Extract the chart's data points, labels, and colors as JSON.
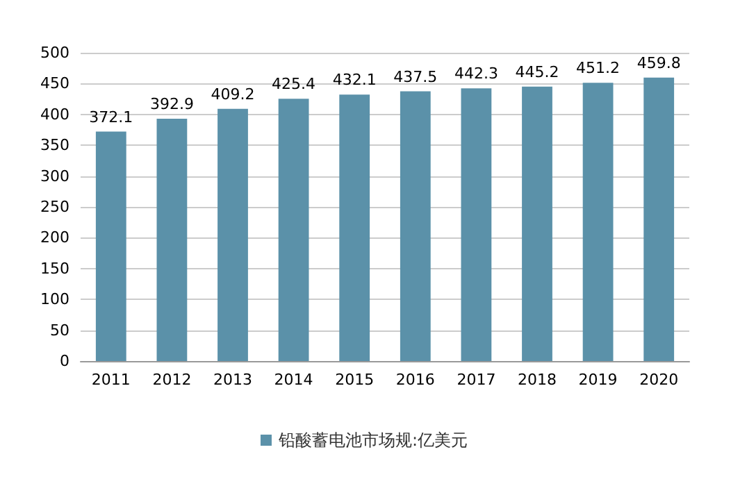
{
  "chart_data": {
    "type": "bar",
    "categories": [
      "2011",
      "2012",
      "2013",
      "2014",
      "2015",
      "2016",
      "2017",
      "2018",
      "2019",
      "2020"
    ],
    "series": [
      {
        "name": "铅酸蓄电池市场规:亿美元",
        "color": "#5b91a9",
        "values": [
          372.1,
          392.9,
          409.2,
          425.4,
          432.1,
          437.5,
          442.3,
          445.2,
          451.2,
          459.8
        ]
      }
    ],
    "ylim": [
      0,
      500
    ],
    "yticks": [
      0,
      50,
      100,
      150,
      200,
      250,
      300,
      350,
      400,
      450,
      500
    ],
    "grid": "y",
    "legend": "bottom",
    "data_labels": true
  }
}
